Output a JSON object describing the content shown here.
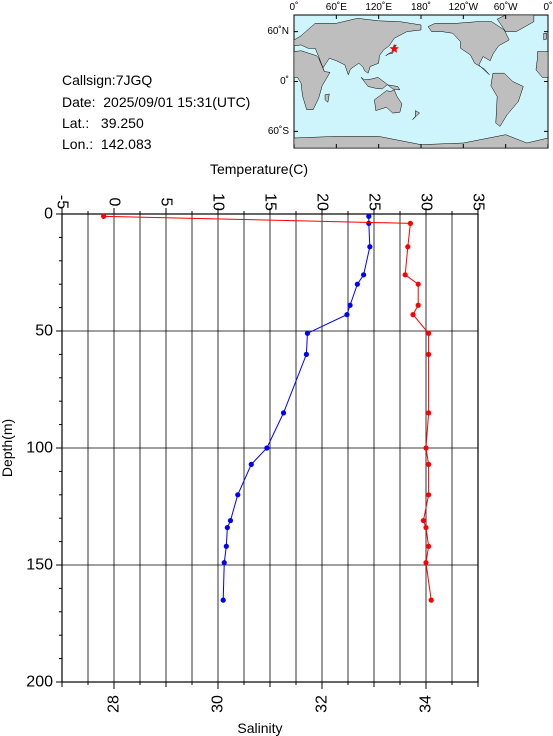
{
  "station": {
    "callsign_label": "Callsign:",
    "callsign": "7JGQ",
    "date_label": "Date:",
    "date": "2025/09/01 15:31(UTC)",
    "lat_label": "Lat.:",
    "lat": "39.250",
    "lon_label": "Lon.:",
    "lon": "142.083"
  },
  "map": {
    "lon_ticks": [
      "0˚",
      "60˚E",
      "120˚E",
      "180˚",
      "120˚W",
      "60˚W",
      "0˚"
    ],
    "lat_ticks": [
      "60˚N",
      "0˚",
      "60˚S"
    ],
    "marker": {
      "lon": 142.083,
      "lat": 39.25
    },
    "ocean_color": "#cdf5fb",
    "land_color": "#bebebe",
    "marker_color": "#ff0000"
  },
  "chart_data": {
    "type": "line",
    "top_axis": {
      "label": "Temperature(C)",
      "range": [
        -5,
        35
      ],
      "ticks": [
        -5,
        0,
        5,
        10,
        15,
        20,
        25,
        30,
        35
      ]
    },
    "bottom_axis": {
      "label": "Salinity",
      "range": [
        27,
        35
      ],
      "ticks": [
        28,
        30,
        32,
        34
      ]
    },
    "y_axis": {
      "label": "Depth(m)",
      "range": [
        0,
        200
      ],
      "inverted": true,
      "ticks": [
        0,
        50,
        100,
        150,
        200
      ]
    },
    "grid": true,
    "series": [
      {
        "axis": "temperature",
        "color": "#0000ff",
        "points": [
          {
            "x": 24.5,
            "y": 1
          },
          {
            "x": 24.5,
            "y": 4
          },
          {
            "x": 24.6,
            "y": 14
          },
          {
            "x": 24.0,
            "y": 26
          },
          {
            "x": 23.4,
            "y": 30
          },
          {
            "x": 22.7,
            "y": 39
          },
          {
            "x": 22.4,
            "y": 43
          },
          {
            "x": 18.6,
            "y": 51
          },
          {
            "x": 18.5,
            "y": 60
          },
          {
            "x": 16.3,
            "y": 85
          },
          {
            "x": 14.7,
            "y": 100
          },
          {
            "x": 13.2,
            "y": 107
          },
          {
            "x": 11.9,
            "y": 120
          },
          {
            "x": 11.2,
            "y": 131
          },
          {
            "x": 10.9,
            "y": 134
          },
          {
            "x": 10.8,
            "y": 142
          },
          {
            "x": 10.6,
            "y": 149
          },
          {
            "x": 10.5,
            "y": 165
          }
        ]
      },
      {
        "axis": "salinity",
        "color": "#ff0000",
        "points": [
          {
            "x": 27.8,
            "y": 1
          },
          {
            "x": 33.7,
            "y": 4
          },
          {
            "x": 33.65,
            "y": 14
          },
          {
            "x": 33.6,
            "y": 26
          },
          {
            "x": 33.85,
            "y": 30
          },
          {
            "x": 33.85,
            "y": 39
          },
          {
            "x": 33.75,
            "y": 43
          },
          {
            "x": 34.05,
            "y": 51
          },
          {
            "x": 34.05,
            "y": 60
          },
          {
            "x": 34.05,
            "y": 85
          },
          {
            "x": 34.0,
            "y": 100
          },
          {
            "x": 34.05,
            "y": 107
          },
          {
            "x": 34.05,
            "y": 120
          },
          {
            "x": 33.95,
            "y": 131
          },
          {
            "x": 34.0,
            "y": 134
          },
          {
            "x": 34.05,
            "y": 142
          },
          {
            "x": 34.0,
            "y": 149
          },
          {
            "x": 34.1,
            "y": 165
          }
        ]
      }
    ]
  }
}
